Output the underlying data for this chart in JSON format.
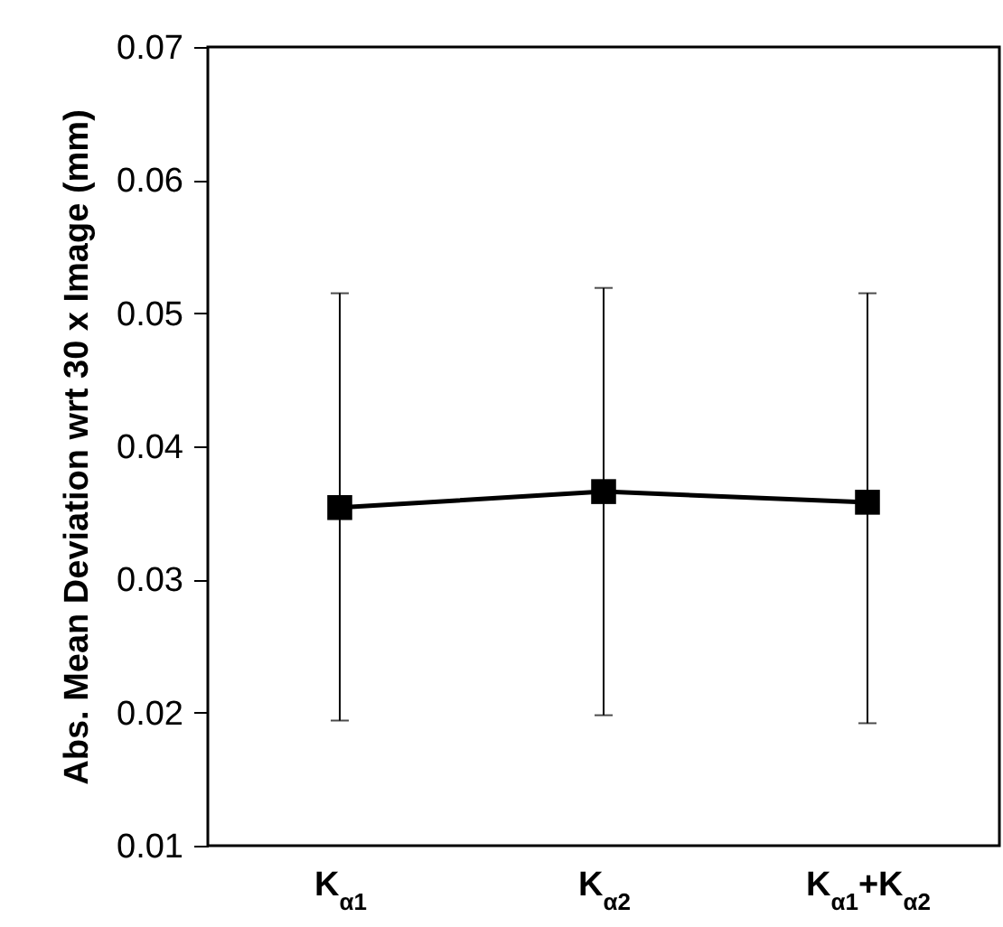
{
  "chart_data": {
    "type": "line",
    "ylabel": "Abs. Mean Deviation wrt 30 x Image (mm)",
    "categories": [
      "K$_{α1}$",
      "K$_{α2}$",
      "K$_{α1}$+K$_{α2}$"
    ],
    "series": [
      {
        "color": "#000000",
        "values": [
          0.0354,
          0.0366,
          0.0358
        ],
        "errors": [
          [
            0.0194,
            0.0515
          ],
          [
            0.0198,
            0.0519
          ],
          [
            0.0192,
            0.0515
          ]
        ]
      }
    ],
    "ylim": [
      0.01,
      0.07
    ],
    "yticks": [
      0.01,
      0.02,
      0.03,
      0.04,
      0.05,
      0.06,
      0.07
    ],
    "grid": false,
    "marker": "square",
    "line_style": "solid"
  }
}
